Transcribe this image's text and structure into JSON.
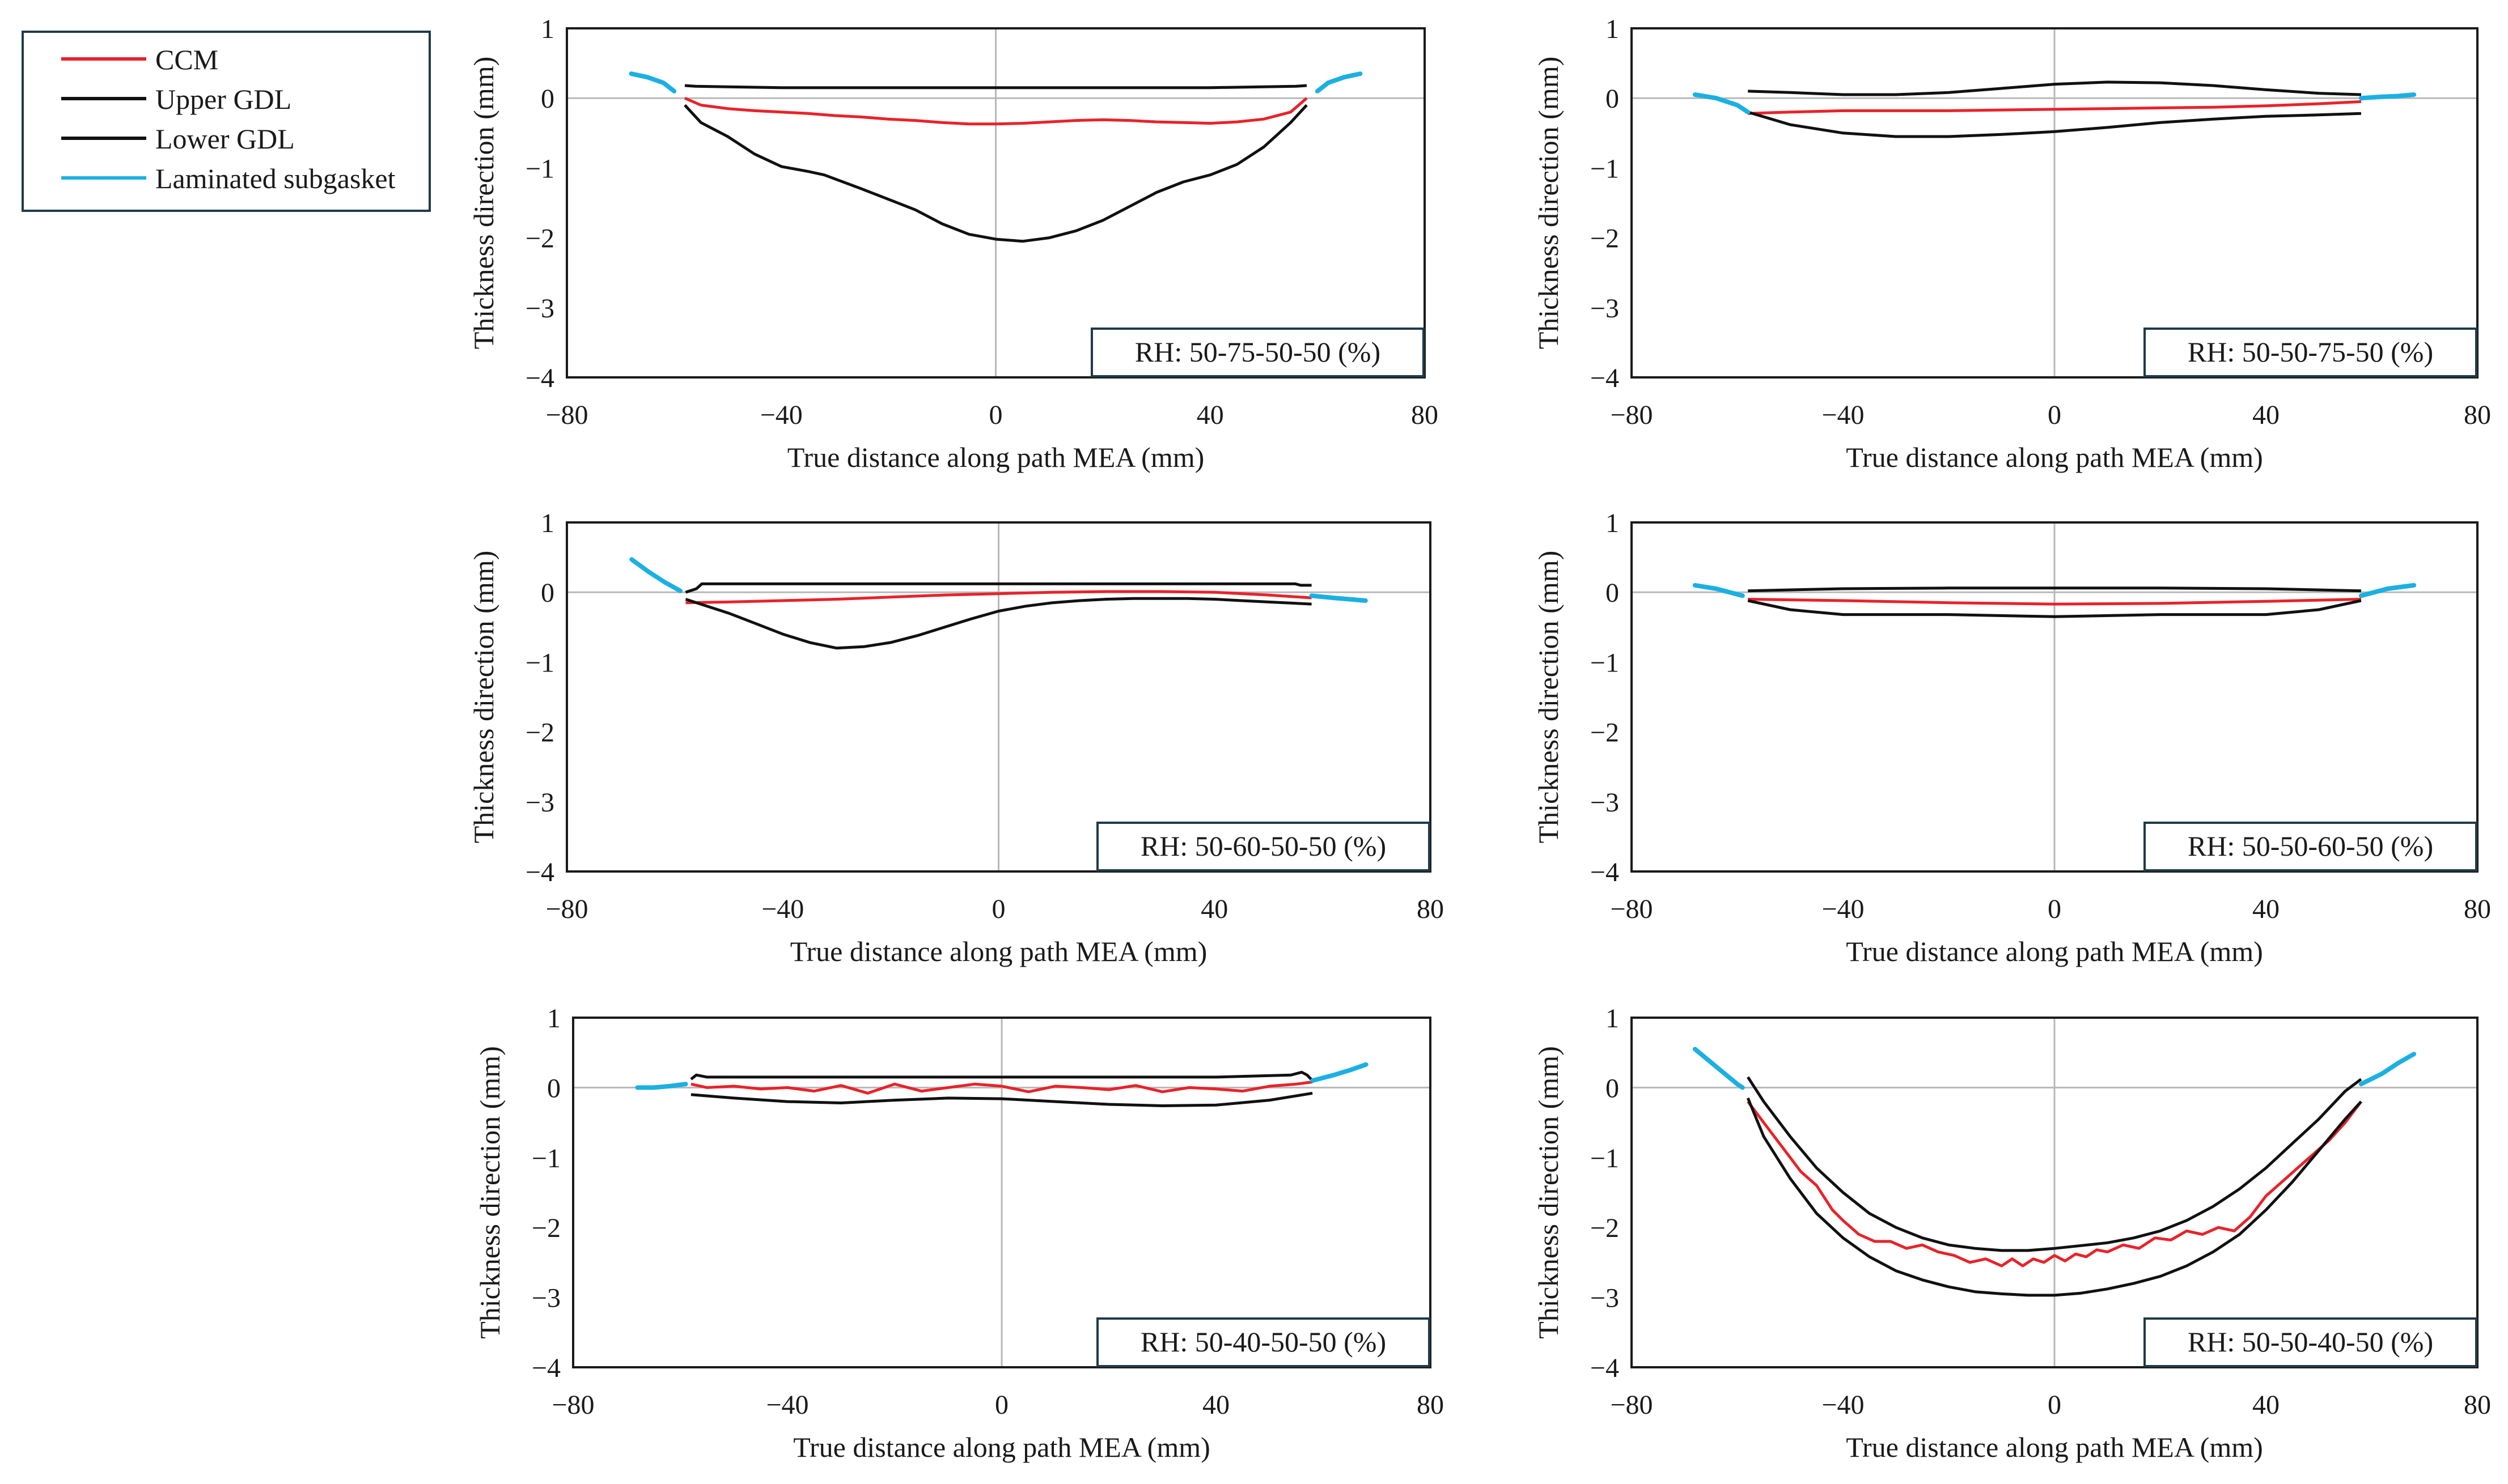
{
  "figure": {
    "legend": [
      {
        "label": "CCM",
        "color": "#e8232a"
      },
      {
        "label": "Upper GDL",
        "color": "#111111"
      },
      {
        "label": "Lower GDL",
        "color": "#111111"
      },
      {
        "label": "Laminated subgasket",
        "color": "#1cb0e2"
      }
    ]
  },
  "chart_data": [
    {
      "type": "line",
      "annotation": "RH: 50-75-50-50 (%)",
      "xlabel": "True distance along path MEA (mm)",
      "ylabel": "Thickness direction (mm)",
      "xlim": [
        -80,
        80
      ],
      "ylim": [
        -4,
        1
      ],
      "xticks": [
        -80,
        -40,
        0,
        40,
        80
      ],
      "yticks": [
        -4,
        -3,
        -2,
        -1,
        0,
        1
      ],
      "grid": "zero-lines",
      "series": [
        {
          "name": "Upper GDL",
          "color": "#111111",
          "x": [
            -58,
            -56,
            -40,
            -20,
            0,
            20,
            40,
            56,
            58
          ],
          "y": [
            0.18,
            0.17,
            0.15,
            0.15,
            0.15,
            0.15,
            0.15,
            0.17,
            0.18
          ]
        },
        {
          "name": "CCM",
          "color": "#e8232a",
          "x": [
            -58,
            -55,
            -50,
            -45,
            -40,
            -35,
            -30,
            -25,
            -20,
            -15,
            -10,
            -5,
            0,
            5,
            10,
            15,
            20,
            25,
            30,
            35,
            40,
            45,
            50,
            55,
            58
          ],
          "y": [
            0.0,
            -0.1,
            -0.15,
            -0.18,
            -0.2,
            -0.22,
            -0.25,
            -0.27,
            -0.3,
            -0.32,
            -0.35,
            -0.37,
            -0.37,
            -0.36,
            -0.34,
            -0.32,
            -0.31,
            -0.32,
            -0.34,
            -0.35,
            -0.36,
            -0.34,
            -0.3,
            -0.2,
            0.0
          ]
        },
        {
          "name": "Lower GDL",
          "color": "#111111",
          "x": [
            -58,
            -55,
            -50,
            -45,
            -40,
            -35,
            -32,
            -25,
            -20,
            -15,
            -10,
            -5,
            0,
            5,
            10,
            15,
            20,
            25,
            30,
            35,
            40,
            45,
            50,
            55,
            58
          ],
          "y": [
            -0.1,
            -0.35,
            -0.55,
            -0.8,
            -0.98,
            -1.05,
            -1.1,
            -1.3,
            -1.45,
            -1.6,
            -1.8,
            -1.95,
            -2.02,
            -2.05,
            -2.0,
            -1.9,
            -1.75,
            -1.55,
            -1.35,
            -1.2,
            -1.1,
            -0.95,
            -0.7,
            -0.35,
            -0.1
          ]
        },
        {
          "name": "Laminated subgasket",
          "color": "#1cb0e2",
          "x": [
            -68,
            -65,
            -62,
            -60,
            60,
            62,
            65,
            68
          ],
          "y": [
            0.35,
            0.3,
            0.22,
            0.1,
            0.1,
            0.22,
            0.3,
            0.35
          ]
        }
      ]
    },
    {
      "type": "line",
      "annotation": "RH: 50-50-75-50 (%)",
      "xlabel": "True distance along path MEA (mm)",
      "ylabel": "Thickness direction (mm)",
      "xlim": [
        -80,
        80
      ],
      "ylim": [
        -4,
        1
      ],
      "xticks": [
        -80,
        -40,
        0,
        40,
        80
      ],
      "yticks": [
        -4,
        -3,
        -2,
        -1,
        0,
        1
      ],
      "grid": "zero-lines",
      "series": [
        {
          "name": "Upper GDL",
          "color": "#111111",
          "x": [
            -58,
            -50,
            -40,
            -30,
            -20,
            -10,
            0,
            10,
            20,
            30,
            40,
            50,
            58
          ],
          "y": [
            0.1,
            0.08,
            0.05,
            0.05,
            0.08,
            0.14,
            0.2,
            0.23,
            0.22,
            0.18,
            0.12,
            0.07,
            0.05
          ]
        },
        {
          "name": "CCM",
          "color": "#e8232a",
          "x": [
            -58,
            -50,
            -40,
            -30,
            -20,
            -10,
            0,
            10,
            20,
            30,
            40,
            50,
            58
          ],
          "y": [
            -0.22,
            -0.2,
            -0.18,
            -0.18,
            -0.18,
            -0.17,
            -0.16,
            -0.15,
            -0.14,
            -0.13,
            -0.11,
            -0.08,
            -0.05
          ]
        },
        {
          "name": "Lower GDL",
          "color": "#111111",
          "x": [
            -58,
            -50,
            -40,
            -30,
            -20,
            -10,
            0,
            10,
            20,
            30,
            40,
            50,
            58
          ],
          "y": [
            -0.2,
            -0.38,
            -0.5,
            -0.55,
            -0.55,
            -0.52,
            -0.48,
            -0.42,
            -0.35,
            -0.3,
            -0.26,
            -0.24,
            -0.22
          ]
        },
        {
          "name": "Laminated subgasket",
          "color": "#1cb0e2",
          "x": [
            -68,
            -64,
            -60,
            -58,
            58,
            62,
            65,
            68
          ],
          "y": [
            0.05,
            0.0,
            -0.1,
            -0.2,
            0.0,
            0.02,
            0.03,
            0.05
          ]
        }
      ]
    },
    {
      "type": "line",
      "annotation": "RH: 50-60-50-50 (%)",
      "xlabel": "True distance along path MEA (mm)",
      "ylabel": "Thickness direction (mm)",
      "xlim": [
        -80,
        80
      ],
      "ylim": [
        -4,
        1
      ],
      "xticks": [
        -80,
        -40,
        0,
        40,
        80
      ],
      "yticks": [
        -4,
        -3,
        -2,
        -1,
        0,
        1
      ],
      "grid": "zero-lines",
      "series": [
        {
          "name": "Upper GDL",
          "color": "#111111",
          "x": [
            -58,
            -56,
            -55,
            -40,
            -20,
            0,
            20,
            40,
            55,
            56,
            58
          ],
          "y": [
            0.0,
            0.05,
            0.12,
            0.12,
            0.12,
            0.12,
            0.12,
            0.12,
            0.12,
            0.1,
            0.1
          ]
        },
        {
          "name": "CCM",
          "color": "#e8232a",
          "x": [
            -58,
            -50,
            -40,
            -30,
            -20,
            -10,
            0,
            10,
            20,
            30,
            40,
            50,
            58
          ],
          "y": [
            -0.15,
            -0.14,
            -0.12,
            -0.1,
            -0.07,
            -0.04,
            -0.02,
            0.0,
            0.01,
            0.01,
            0.0,
            -0.04,
            -0.08
          ]
        },
        {
          "name": "Lower GDL",
          "color": "#111111",
          "x": [
            -58,
            -50,
            -45,
            -40,
            -35,
            -30,
            -25,
            -20,
            -15,
            -10,
            -5,
            0,
            5,
            10,
            15,
            20,
            25,
            30,
            35,
            40,
            45,
            50,
            58
          ],
          "y": [
            -0.1,
            -0.3,
            -0.45,
            -0.6,
            -0.72,
            -0.8,
            -0.78,
            -0.72,
            -0.62,
            -0.5,
            -0.38,
            -0.27,
            -0.2,
            -0.15,
            -0.12,
            -0.1,
            -0.09,
            -0.09,
            -0.09,
            -0.1,
            -0.12,
            -0.14,
            -0.17
          ]
        },
        {
          "name": "Laminated subgasket",
          "color": "#1cb0e2",
          "x": [
            -68,
            -65,
            -62,
            -59,
            58,
            62,
            65,
            68
          ],
          "y": [
            0.47,
            0.3,
            0.15,
            0.02,
            -0.05,
            -0.08,
            -0.1,
            -0.12
          ]
        }
      ]
    },
    {
      "type": "line",
      "annotation": "RH: 50-50-60-50 (%)",
      "xlabel": "True distance along path MEA (mm)",
      "ylabel": "Thickness direction (mm)",
      "xlim": [
        -80,
        80
      ],
      "ylim": [
        -4,
        1
      ],
      "xticks": [
        -80,
        -40,
        0,
        40,
        80
      ],
      "yticks": [
        -4,
        -3,
        -2,
        -1,
        0,
        1
      ],
      "grid": "zero-lines",
      "series": [
        {
          "name": "Upper GDL",
          "color": "#111111",
          "x": [
            -58,
            -40,
            -20,
            0,
            20,
            40,
            58
          ],
          "y": [
            0.02,
            0.05,
            0.06,
            0.06,
            0.06,
            0.05,
            0.02
          ]
        },
        {
          "name": "CCM",
          "color": "#e8232a",
          "x": [
            -58,
            -40,
            -20,
            0,
            20,
            40,
            58
          ],
          "y": [
            -0.1,
            -0.12,
            -0.15,
            -0.17,
            -0.16,
            -0.13,
            -0.1
          ]
        },
        {
          "name": "Lower GDL",
          "color": "#111111",
          "x": [
            -58,
            -50,
            -40,
            -20,
            0,
            20,
            40,
            50,
            58
          ],
          "y": [
            -0.12,
            -0.25,
            -0.32,
            -0.32,
            -0.35,
            -0.32,
            -0.32,
            -0.25,
            -0.12
          ]
        },
        {
          "name": "Laminated subgasket",
          "color": "#1cb0e2",
          "x": [
            -68,
            -64,
            -59,
            58,
            63,
            68
          ],
          "y": [
            0.1,
            0.05,
            -0.05,
            -0.05,
            0.05,
            0.1
          ]
        }
      ]
    },
    {
      "type": "line",
      "annotation": "RH: 50-40-50-50 (%)",
      "xlabel": "True distance along path MEA (mm)",
      "ylabel": "Thickness direction (mm)",
      "xlim": [
        -80,
        80
      ],
      "ylim": [
        -4,
        1
      ],
      "xticks": [
        -80,
        -40,
        0,
        40,
        80
      ],
      "yticks": [
        -4,
        -3,
        -2,
        -1,
        0,
        1
      ],
      "grid": "zero-lines",
      "series": [
        {
          "name": "Upper GDL",
          "color": "#111111",
          "x": [
            -58,
            -57,
            -55,
            -40,
            -20,
            0,
            20,
            40,
            54,
            56,
            57,
            58
          ],
          "y": [
            0.12,
            0.18,
            0.15,
            0.15,
            0.15,
            0.15,
            0.15,
            0.15,
            0.18,
            0.22,
            0.18,
            0.1
          ]
        },
        {
          "name": "CCM",
          "color": "#e8232a",
          "x": [
            -58,
            -55,
            -50,
            -45,
            -40,
            -35,
            -30,
            -25,
            -20,
            -15,
            -10,
            -5,
            0,
            5,
            10,
            15,
            20,
            25,
            30,
            35,
            40,
            45,
            50,
            55,
            58
          ],
          "y": [
            0.05,
            0.0,
            0.02,
            -0.02,
            0.0,
            -0.05,
            0.03,
            -0.08,
            0.05,
            -0.05,
            0.0,
            0.05,
            0.02,
            -0.06,
            0.02,
            0.0,
            -0.03,
            0.03,
            -0.06,
            0.0,
            -0.02,
            -0.05,
            0.02,
            0.05,
            0.08
          ]
        },
        {
          "name": "Lower GDL",
          "color": "#111111",
          "x": [
            -58,
            -50,
            -40,
            -30,
            -20,
            -10,
            0,
            10,
            20,
            30,
            40,
            50,
            58
          ],
          "y": [
            -0.1,
            -0.15,
            -0.2,
            -0.22,
            -0.18,
            -0.15,
            -0.16,
            -0.2,
            -0.24,
            -0.26,
            -0.25,
            -0.18,
            -0.08
          ]
        },
        {
          "name": "Laminated subgasket",
          "color": "#1cb0e2",
          "x": [
            -68,
            -65,
            -62,
            -59,
            58,
            62,
            65,
            68
          ],
          "y": [
            0.0,
            0.0,
            0.02,
            0.05,
            0.1,
            0.18,
            0.25,
            0.33
          ]
        }
      ]
    },
    {
      "type": "line",
      "annotation": "RH: 50-50-40-50 (%)",
      "xlabel": "True distance along path MEA (mm)",
      "ylabel": "Thickness direction (mm)",
      "xlim": [
        -80,
        80
      ],
      "ylim": [
        -4,
        1
      ],
      "xticks": [
        -80,
        -40,
        0,
        40,
        80
      ],
      "yticks": [
        -4,
        -3,
        -2,
        -1,
        0,
        1
      ],
      "grid": "zero-lines",
      "series": [
        {
          "name": "Upper GDL",
          "color": "#111111",
          "x": [
            -58,
            -55,
            -50,
            -45,
            -40,
            -35,
            -30,
            -25,
            -20,
            -15,
            -10,
            -5,
            0,
            5,
            10,
            15,
            20,
            25,
            30,
            35,
            40,
            45,
            50,
            55,
            58
          ],
          "y": [
            0.15,
            -0.2,
            -0.7,
            -1.15,
            -1.5,
            -1.8,
            -2.0,
            -2.15,
            -2.25,
            -2.3,
            -2.33,
            -2.33,
            -2.3,
            -2.26,
            -2.22,
            -2.15,
            -2.05,
            -1.9,
            -1.7,
            -1.45,
            -1.15,
            -0.8,
            -0.45,
            -0.05,
            0.12
          ]
        },
        {
          "name": "CCM",
          "color": "#e8232a",
          "x": [
            -58,
            -55,
            -52,
            -50,
            -48,
            -45,
            -42,
            -40,
            -37,
            -34,
            -31,
            -28,
            -25,
            -22,
            -19,
            -16,
            -13,
            -10,
            -8,
            -6,
            -4,
            -2,
            0,
            2,
            4,
            6,
            8,
            10,
            13,
            16,
            19,
            22,
            25,
            28,
            31,
            34,
            37,
            40,
            43,
            46,
            49,
            52,
            55,
            58
          ],
          "y": [
            -0.2,
            -0.5,
            -0.8,
            -1.0,
            -1.2,
            -1.4,
            -1.75,
            -1.9,
            -2.1,
            -2.2,
            -2.2,
            -2.3,
            -2.25,
            -2.35,
            -2.4,
            -2.5,
            -2.45,
            -2.55,
            -2.45,
            -2.55,
            -2.45,
            -2.5,
            -2.4,
            -2.48,
            -2.38,
            -2.42,
            -2.32,
            -2.35,
            -2.25,
            -2.3,
            -2.15,
            -2.18,
            -2.05,
            -2.1,
            -2.0,
            -2.05,
            -1.85,
            -1.55,
            -1.35,
            -1.15,
            -0.95,
            -0.75,
            -0.5,
            -0.2
          ]
        },
        {
          "name": "Lower GDL",
          "color": "#111111",
          "x": [
            -58,
            -55,
            -50,
            -45,
            -40,
            -35,
            -30,
            -25,
            -20,
            -15,
            -10,
            -5,
            0,
            5,
            10,
            15,
            20,
            25,
            30,
            35,
            40,
            45,
            50,
            55,
            58
          ],
          "y": [
            -0.15,
            -0.7,
            -1.3,
            -1.8,
            -2.15,
            -2.42,
            -2.62,
            -2.75,
            -2.85,
            -2.92,
            -2.95,
            -2.97,
            -2.97,
            -2.94,
            -2.88,
            -2.8,
            -2.7,
            -2.55,
            -2.35,
            -2.1,
            -1.75,
            -1.35,
            -0.9,
            -0.45,
            -0.2
          ]
        },
        {
          "name": "Laminated subgasket",
          "color": "#1cb0e2",
          "x": [
            -68,
            -64,
            -60,
            -59,
            58,
            62,
            65,
            68
          ],
          "y": [
            0.55,
            0.3,
            0.05,
            0.0,
            0.05,
            0.2,
            0.35,
            0.48
          ]
        }
      ]
    }
  ]
}
